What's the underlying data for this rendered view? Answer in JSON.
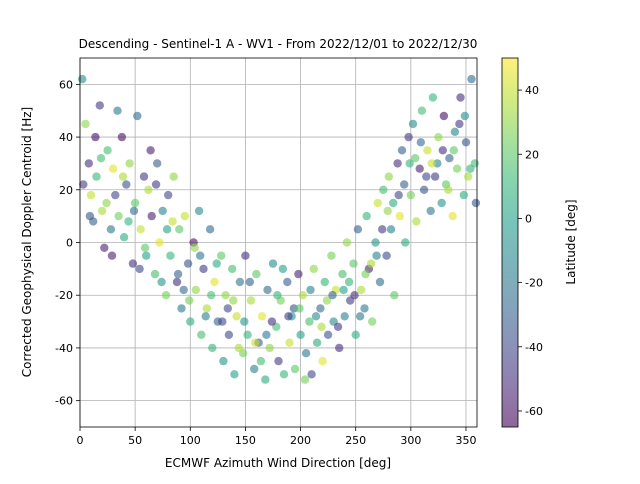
{
  "chart_data": {
    "type": "scatter",
    "title": "Descending - Sentinel-1 A - WV1 - From 2022/12/01 to 2022/12/30",
    "xlabel": "ECMWF Azimuth Wind Direction [deg]",
    "ylabel": "Corrected Geophysical Doppler Centroid [Hz]",
    "xlim": [
      0,
      360
    ],
    "ylim": [
      -70,
      70
    ],
    "xticks": [
      0,
      50,
      100,
      150,
      200,
      250,
      300,
      350
    ],
    "yticks": [
      -60,
      -40,
      -20,
      0,
      20,
      40,
      60
    ],
    "grid": true,
    "marker_alpha": 0.6,
    "colorbar": {
      "label": "Latitude [deg]",
      "range": [
        -65,
        50
      ],
      "ticks": [
        -60,
        -40,
        -20,
        0,
        20,
        40
      ],
      "colormap": "viridis",
      "stops": [
        "#440154",
        "#482878",
        "#3e4989",
        "#31688e",
        "#26828e",
        "#1f9e89",
        "#35b779",
        "#6ece58",
        "#b5de2b",
        "#fde725"
      ]
    },
    "series": [
      {
        "columns": [
          "wind_direction_deg",
          "doppler_hz",
          "latitude_deg"
        ],
        "points": [
          [
            2,
            62,
            -10
          ],
          [
            5,
            45,
            30
          ],
          [
            8,
            30,
            -50
          ],
          [
            10,
            18,
            40
          ],
          [
            12,
            8,
            -30
          ],
          [
            15,
            25,
            10
          ],
          [
            18,
            52,
            -45
          ],
          [
            20,
            12,
            35
          ],
          [
            22,
            -2,
            -55
          ],
          [
            25,
            35,
            15
          ],
          [
            28,
            5,
            -20
          ],
          [
            30,
            28,
            45
          ],
          [
            32,
            18,
            -40
          ],
          [
            35,
            10,
            25
          ],
          [
            38,
            40,
            -60
          ],
          [
            40,
            2,
            5
          ],
          [
            42,
            22,
            -35
          ],
          [
            45,
            30,
            30
          ],
          [
            48,
            -8,
            -50
          ],
          [
            50,
            15,
            20
          ],
          [
            52,
            48,
            -25
          ],
          [
            55,
            5,
            40
          ],
          [
            58,
            25,
            -45
          ],
          [
            60,
            -5,
            0
          ],
          [
            62,
            20,
            35
          ],
          [
            65,
            10,
            -55
          ],
          [
            68,
            -12,
            15
          ],
          [
            70,
            30,
            -30
          ],
          [
            72,
            0,
            45
          ],
          [
            75,
            12,
            -15
          ],
          [
            78,
            -20,
            25
          ],
          [
            80,
            18,
            -40
          ],
          [
            82,
            -5,
            10
          ],
          [
            85,
            25,
            30
          ],
          [
            88,
            -15,
            -50
          ],
          [
            90,
            5,
            20
          ],
          [
            92,
            -25,
            -20
          ],
          [
            95,
            10,
            40
          ],
          [
            98,
            -8,
            -35
          ],
          [
            100,
            -30,
            5
          ],
          [
            103,
            0,
            -60
          ],
          [
            105,
            -18,
            30
          ],
          [
            108,
            12,
            -10
          ],
          [
            110,
            -35,
            15
          ],
          [
            112,
            -10,
            -45
          ],
          [
            115,
            -25,
            35
          ],
          [
            118,
            5,
            -25
          ],
          [
            120,
            -40,
            10
          ],
          [
            122,
            -15,
            45
          ],
          [
            125,
            -30,
            -30
          ],
          [
            128,
            -5,
            20
          ],
          [
            130,
            -45,
            -5
          ],
          [
            132,
            -20,
            30
          ],
          [
            135,
            -35,
            -40
          ],
          [
            138,
            -10,
            15
          ],
          [
            140,
            -50,
            0
          ],
          [
            142,
            -28,
            40
          ],
          [
            145,
            -15,
            -20
          ],
          [
            148,
            -42,
            25
          ],
          [
            150,
            -5,
            -50
          ],
          [
            152,
            -35,
            10
          ],
          [
            155,
            -22,
            35
          ],
          [
            158,
            -48,
            -15
          ],
          [
            160,
            -12,
            20
          ],
          [
            162,
            -38,
            -35
          ],
          [
            165,
            -28,
            45
          ],
          [
            168,
            -52,
            5
          ],
          [
            170,
            -18,
            -25
          ],
          [
            172,
            -40,
            30
          ],
          [
            175,
            -8,
            -10
          ],
          [
            178,
            -32,
            15
          ],
          [
            180,
            -45,
            -45
          ],
          [
            182,
            -22,
            25
          ],
          [
            185,
            -50,
            10
          ],
          [
            188,
            -15,
            -30
          ],
          [
            190,
            -38,
            40
          ],
          [
            192,
            -28,
            -5
          ],
          [
            195,
            -48,
            20
          ],
          [
            198,
            -12,
            -55
          ],
          [
            200,
            -35,
            0
          ],
          [
            202,
            -20,
            35
          ],
          [
            205,
            -42,
            -20
          ],
          [
            208,
            -30,
            15
          ],
          [
            210,
            -50,
            -40
          ],
          [
            212,
            -10,
            30
          ],
          [
            215,
            -38,
            5
          ],
          [
            218,
            -25,
            -25
          ],
          [
            220,
            -45,
            45
          ],
          [
            222,
            -15,
            10
          ],
          [
            225,
            -35,
            -35
          ],
          [
            228,
            -5,
            25
          ],
          [
            230,
            -30,
            -10
          ],
          [
            232,
            -18,
            40
          ],
          [
            235,
            -40,
            -50
          ],
          [
            238,
            -12,
            15
          ],
          [
            240,
            -28,
            -15
          ],
          [
            242,
            0,
            30
          ],
          [
            245,
            -22,
            -45
          ],
          [
            248,
            -8,
            20
          ],
          [
            250,
            -35,
            5
          ],
          [
            252,
            5,
            -30
          ],
          [
            255,
            -18,
            35
          ],
          [
            258,
            -25,
            -20
          ],
          [
            260,
            10,
            10
          ],
          [
            262,
            -10,
            -55
          ],
          [
            265,
            -30,
            25
          ],
          [
            268,
            0,
            -5
          ],
          [
            270,
            15,
            40
          ],
          [
            272,
            -15,
            -25
          ],
          [
            275,
            20,
            15
          ],
          [
            278,
            -5,
            -40
          ],
          [
            280,
            25,
            30
          ],
          [
            282,
            5,
            -15
          ],
          [
            285,
            -20,
            20
          ],
          [
            288,
            30,
            -50
          ],
          [
            290,
            10,
            45
          ],
          [
            292,
            35,
            -30
          ],
          [
            295,
            0,
            5
          ],
          [
            298,
            40,
            -45
          ],
          [
            300,
            18,
            25
          ],
          [
            302,
            45,
            -10
          ],
          [
            305,
            8,
            35
          ],
          [
            308,
            28,
            -55
          ],
          [
            310,
            50,
            15
          ],
          [
            312,
            20,
            -35
          ],
          [
            315,
            35,
            40
          ],
          [
            318,
            12,
            -20
          ],
          [
            320,
            55,
            10
          ],
          [
            322,
            25,
            -45
          ],
          [
            325,
            40,
            30
          ],
          [
            328,
            15,
            -5
          ],
          [
            330,
            48,
            -60
          ],
          [
            332,
            22,
            20
          ],
          [
            335,
            32,
            -30
          ],
          [
            338,
            10,
            45
          ],
          [
            340,
            42,
            -15
          ],
          [
            342,
            28,
            25
          ],
          [
            345,
            55,
            -50
          ],
          [
            348,
            18,
            5
          ],
          [
            350,
            38,
            -35
          ],
          [
            352,
            25,
            35
          ],
          [
            355,
            62,
            -25
          ],
          [
            358,
            30,
            15
          ],
          [
            3,
            22,
            -45
          ],
          [
            14,
            40,
            -60
          ],
          [
            24,
            15,
            30
          ],
          [
            34,
            50,
            -20
          ],
          [
            44,
            8,
            10
          ],
          [
            54,
            -10,
            -40
          ],
          [
            64,
            35,
            -55
          ],
          [
            74,
            -15,
            -5
          ],
          [
            84,
            8,
            40
          ],
          [
            94,
            -18,
            -25
          ],
          [
            104,
            -2,
            30
          ],
          [
            114,
            -28,
            -15
          ],
          [
            124,
            -8,
            5
          ],
          [
            134,
            -25,
            -40
          ],
          [
            144,
            -40,
            35
          ],
          [
            154,
            -15,
            -30
          ],
          [
            164,
            -45,
            15
          ],
          [
            174,
            -30,
            -50
          ],
          [
            184,
            -10,
            0
          ],
          [
            194,
            -25,
            -35
          ],
          [
            204,
            -52,
            25
          ],
          [
            214,
            -28,
            -10
          ],
          [
            224,
            -22,
            30
          ],
          [
            234,
            -32,
            -45
          ],
          [
            244,
            -15,
            10
          ],
          [
            254,
            -28,
            -20
          ],
          [
            264,
            -8,
            35
          ],
          [
            274,
            5,
            -45
          ],
          [
            284,
            15,
            5
          ],
          [
            294,
            22,
            -30
          ],
          [
            304,
            32,
            20
          ],
          [
            314,
            25,
            -40
          ],
          [
            324,
            30,
            -15
          ],
          [
            334,
            20,
            35
          ],
          [
            344,
            45,
            -45
          ],
          [
            354,
            28,
            10
          ],
          [
            9,
            10,
            -35
          ],
          [
            19,
            32,
            15
          ],
          [
            29,
            -5,
            -55
          ],
          [
            39,
            25,
            35
          ],
          [
            49,
            12,
            -25
          ],
          [
            59,
            -2,
            20
          ],
          [
            69,
            22,
            -45
          ],
          [
            79,
            5,
            0
          ],
          [
            89,
            -12,
            -30
          ],
          [
            99,
            -22,
            25
          ],
          [
            109,
            -5,
            -20
          ],
          [
            119,
            -20,
            15
          ],
          [
            129,
            -30,
            -40
          ],
          [
            139,
            -22,
            30
          ],
          [
            149,
            -30,
            -5
          ],
          [
            159,
            -38,
            40
          ],
          [
            169,
            -35,
            -20
          ],
          [
            179,
            -20,
            10
          ],
          [
            189,
            -28,
            -45
          ],
          [
            199,
            -25,
            20
          ],
          [
            209,
            -18,
            -15
          ],
          [
            219,
            -32,
            35
          ],
          [
            229,
            -20,
            -30
          ],
          [
            239,
            -18,
            0
          ],
          [
            249,
            -20,
            -50
          ],
          [
            259,
            -12,
            25
          ],
          [
            269,
            -5,
            -15
          ],
          [
            279,
            12,
            30
          ],
          [
            289,
            18,
            -40
          ],
          [
            299,
            30,
            10
          ],
          [
            309,
            38,
            -25
          ],
          [
            319,
            30,
            40
          ],
          [
            329,
            35,
            -50
          ],
          [
            339,
            35,
            20
          ],
          [
            349,
            48,
            -10
          ],
          [
            359,
            15,
            -35
          ]
        ]
      }
    ]
  }
}
